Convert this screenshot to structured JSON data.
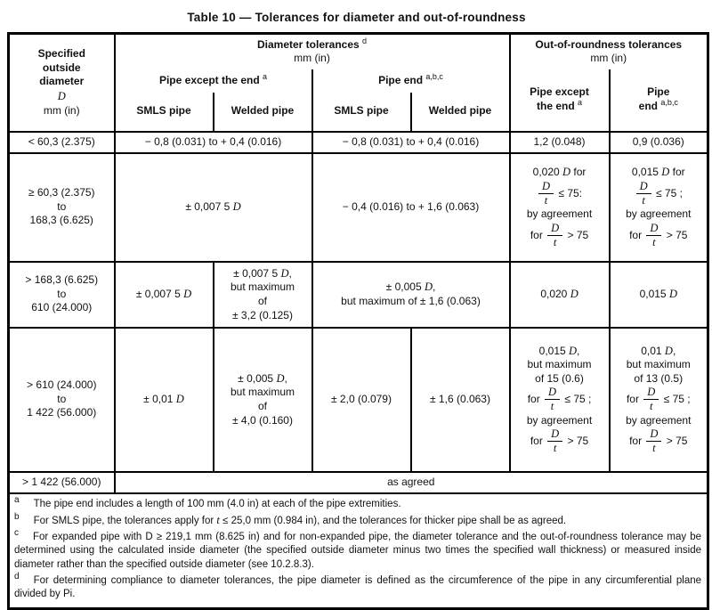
{
  "title": "Table 10 — Tolerances for diameter and out-of-roundness",
  "header": {
    "col1_title": "Specified\noutside\ndiameter",
    "col1_symbol": "{D}",
    "col1_unit": "mm (in)",
    "diameter": {
      "title": "Diameter tolerances {sup:d}",
      "unit": "mm (in)"
    },
    "oor": {
      "title": "Out-of-roundness tolerances",
      "unit": "mm (in)"
    },
    "pipe_except_end": "Pipe except the end {sup:a}",
    "pipe_end": "Pipe end {sup:a,b,c}",
    "smls_pipe": "SMLS pipe",
    "welded_pipe": "Welded pipe",
    "oor_pipe_except": "Pipe except\nthe end {sup:a}",
    "oor_pipe_end": "Pipe\nend {sup:a,b,c}"
  },
  "fraction": {
    "numerator": "D",
    "denominator": "t"
  },
  "rows": {
    "r1": {
      "d": "< 60,3 (2.375)",
      "except_end": "− 0,8 (0.031) to + 0,4 (0.016)",
      "pipe_end": "− 0,8 (0.031) to + 0,4 (0.016)",
      "oor_except": "1,2 (0.048)",
      "oor_end": "0,9 (0.036)"
    },
    "r2": {
      "d": "≥ 60,3 (2.375)\nto\n168,3 (6.625)",
      "except_end": "± 0,007 5 {D}",
      "pipe_end": "− 0,4 (0.016) to + 1,6 (0.063)",
      "oor_except": "0,020 {D} for\n{frac} ≤ 75:\nby agreement\nfor {frac} > 75",
      "oor_end": "0,015 {D} for\n{frac} ≤ 75 ;\nby agreement\nfor {frac} > 75"
    },
    "r3": {
      "d": "> 168,3 (6.625)\nto\n610 (24.000)",
      "smls": "± 0,007 5 {D}",
      "welded": "± 0,007 5 {D},\nbut maximum\nof\n± 3,2 (0.125)",
      "pipe_end": "± 0,005 {D},\nbut maximum of ± 1,6 (0.063)",
      "oor_except": "0,020 {D}",
      "oor_end": "0,015 {D}"
    },
    "r4": {
      "d": "> 610 (24.000)\nto\n1 422 (56.000)",
      "smls": "± 0,01 {D}",
      "welded": "± 0,005 {D},\nbut maximum\nof\n± 4,0 (0.160)",
      "end_smls": "± 2,0 (0.079)",
      "end_welded": "± 1,6 (0.063)",
      "oor_except": "0,015 {D},\nbut maximum\nof 15 (0.6)\nfor {frac} ≤ 75 ;\nby agreement\nfor {frac} > 75",
      "oor_end": "0,01 {D},\nbut maximum\nof 13 (0.5)\nfor {frac} ≤ 75 ;\nby agreement\nfor {frac} > 75"
    },
    "r5": {
      "d": "> 1 422 (56.000)",
      "all": "as agreed"
    }
  },
  "footnotes": [
    {
      "letter": "a",
      "text": "The pipe end includes a length of 100 mm (4.0 in) at each of the pipe extremities."
    },
    {
      "letter": "b",
      "text": "For SMLS pipe, the tolerances apply for {t} ≤ 25,0 mm (0.984 in), and the tolerances for thicker pipe shall be as agreed."
    },
    {
      "letter": "c",
      "text": "For expanded pipe with D ≥ 219,1 mm (8.625 in) and for non-expanded pipe, the diameter tolerance and the out-of-roundness tolerance may be determined using the calculated inside diameter (the specified outside diameter minus two times the specified wall thickness) or measured inside diameter rather than the specified outside diameter (see 10.2.8.3)."
    },
    {
      "letter": "d",
      "text": "For determining compliance to diameter tolerances, the pipe diameter is defined as the circumference of the pipe in any circumferential plane divided by Pi."
    }
  ],
  "colors": {
    "border": "#000000",
    "text": "#111111",
    "background": "#ffffff"
  }
}
